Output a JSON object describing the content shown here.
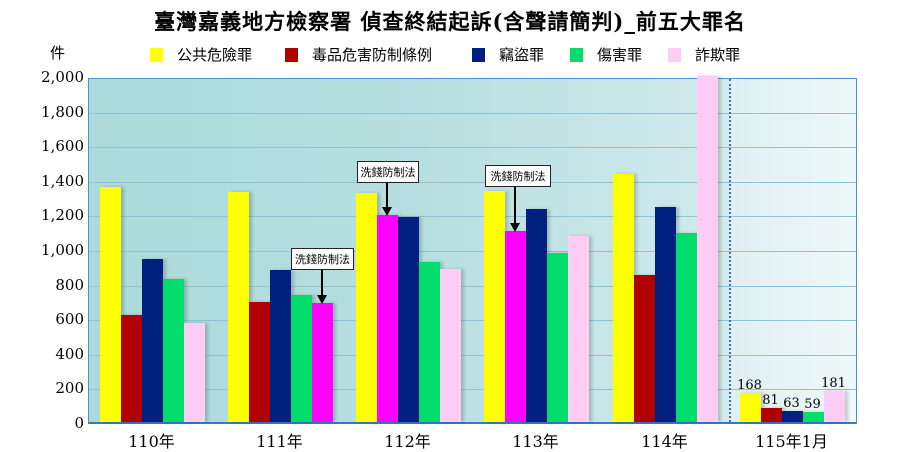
{
  "title": "臺灣嘉義地方檢察署 偵查終結起訴(含聲請簡判)_前五大罪名",
  "unit_label": "件",
  "colors": {
    "公共危險罪": "#ffff00",
    "毒品危害防制條例": "#b00000",
    "竊盜罪": "#002080",
    "傷害罪": "#00dd6a",
    "詐欺罪": "#ffccf5",
    "highlight": "#ff00ff"
  },
  "legend": [
    {
      "label": "公共危險罪",
      "color": "#ffff00"
    },
    {
      "label": "毒品危害防制條例",
      "color": "#b00000"
    },
    {
      "label": "竊盜罪",
      "color": "#002080"
    },
    {
      "label": "傷害罪",
      "color": "#00dd6a"
    },
    {
      "label": "詐欺罪",
      "color": "#ffccf5"
    }
  ],
  "yticks": [
    "2,000",
    "1,800",
    "1,600",
    "1,400",
    "1,200",
    "1,000",
    "800",
    "600",
    "400",
    "200",
    "0"
  ],
  "annotations": [
    {
      "text": "洗錢防制法",
      "year": "111年",
      "series": "詐欺罪"
    },
    {
      "text": "洗錢防制法",
      "year": "112年",
      "series": "毒品危害防制條例"
    },
    {
      "text": "洗錢防制法",
      "year": "113年",
      "series": "毒品危害防制條例"
    }
  ],
  "chart_data": {
    "type": "bar",
    "title": "臺灣嘉義地方檢察署 偵查終結起訴(含聲請簡判)_前五大罪名",
    "xlabel": "",
    "ylabel": "件",
    "ylim": [
      0,
      2000
    ],
    "grid": true,
    "legend_position": "top",
    "categories": [
      "110年",
      "111年",
      "112年",
      "113年",
      "114年",
      "115年1月"
    ],
    "series": [
      {
        "name": "公共危險罪",
        "values": [
          1360,
          1330,
          1325,
          1335,
          1435,
          168
        ]
      },
      {
        "name": "毒品危害防制條例",
        "values": [
          620,
          695,
          1195,
          1105,
          850,
          81
        ]
      },
      {
        "name": "竊盜罪",
        "values": [
          945,
          880,
          1185,
          1230,
          1245,
          63
        ]
      },
      {
        "name": "傷害罪",
        "values": [
          825,
          735,
          925,
          975,
          1090,
          59
        ]
      },
      {
        "name": "詐欺罪",
        "values": [
          575,
          690,
          885,
          1075,
          2000,
          181
        ]
      }
    ],
    "data_labels_115年1月": [
      "168",
      "81",
      "63",
      "59",
      "181"
    ],
    "notes": "114年 詐欺罪 bar reaches/exceeds the 2,000 axis max (clipped). Magenta bars mark values annotated 洗錢防制法 (111年 5th bar; 112年 & 113年 2nd bar)."
  }
}
